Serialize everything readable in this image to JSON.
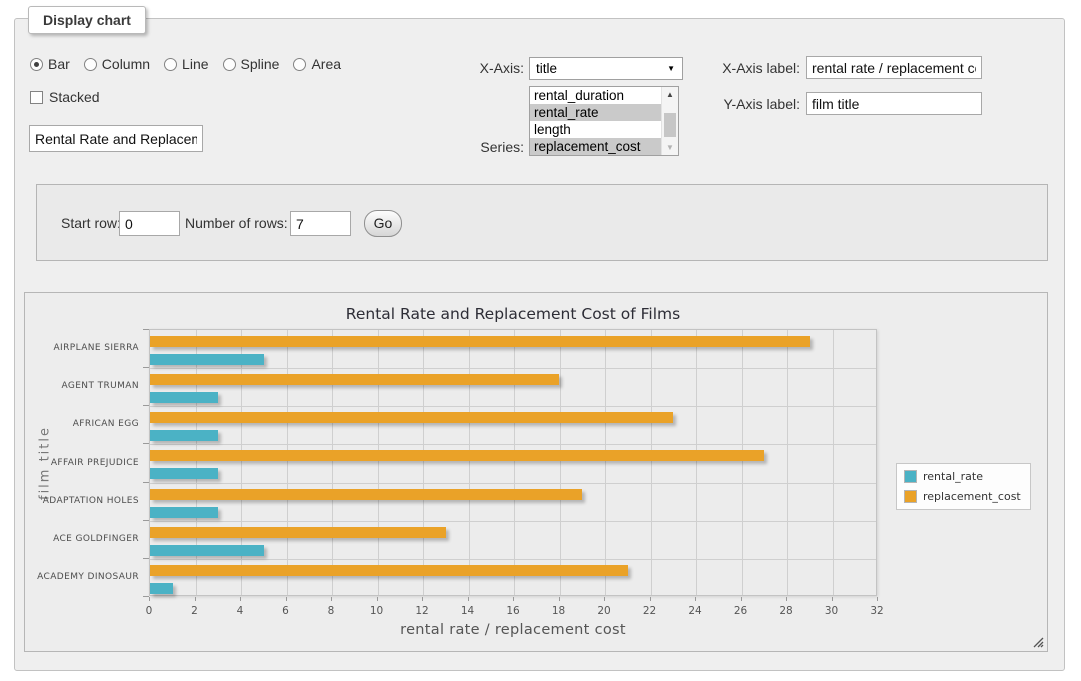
{
  "form": {
    "legend": "Display chart",
    "chart_types": [
      {
        "label": "Bar",
        "checked": true
      },
      {
        "label": "Column",
        "checked": false
      },
      {
        "label": "Line",
        "checked": false
      },
      {
        "label": "Spline",
        "checked": false
      },
      {
        "label": "Area",
        "checked": false
      }
    ],
    "stacked_label": "Stacked",
    "stacked_checked": false,
    "title_value": "Rental Rate and Replacement Cost of Films",
    "x_axis": {
      "label": "X-Axis:",
      "value": "title"
    },
    "series": {
      "label": "Series:",
      "options": [
        {
          "name": "rental_duration",
          "selected": false
        },
        {
          "name": "rental_rate",
          "selected": true
        },
        {
          "name": "length",
          "selected": false
        },
        {
          "name": "replacement_cost",
          "selected": true
        }
      ]
    },
    "x_axis_label": {
      "label": "X-Axis label:",
      "value": "rental rate / replacement cost"
    },
    "y_axis_label": {
      "label": "Y-Axis label:",
      "value": "film title"
    },
    "rows": {
      "start_label": "Start row:",
      "start_value": "0",
      "count_label": "Number of rows:",
      "count_value": "7",
      "go": "Go"
    }
  },
  "chart_data": {
    "type": "bar",
    "orientation": "horizontal",
    "title": "Rental Rate and Replacement Cost of Films",
    "categories": [
      "AIRPLANE SIERRA",
      "AGENT TRUMAN",
      "AFRICAN EGG",
      "AFFAIR PREJUDICE",
      "ADAPTATION HOLES",
      "ACE GOLDFINGER",
      "ACADEMY DINOSAUR"
    ],
    "series": [
      {
        "name": "rental_rate",
        "color": "#4bb2c5",
        "values": [
          4.99,
          2.99,
          2.99,
          2.99,
          2.99,
          4.99,
          0.99
        ]
      },
      {
        "name": "replacement_cost",
        "color": "#eaa228",
        "values": [
          28.99,
          17.99,
          22.99,
          26.99,
          18.99,
          12.99,
          20.99
        ]
      }
    ],
    "xlabel": "rental rate / replacement cost",
    "ylabel": "film title",
    "xlim": [
      0,
      32
    ],
    "xticks": [
      0,
      2,
      4,
      6,
      8,
      10,
      12,
      14,
      16,
      18,
      20,
      22,
      24,
      26,
      28,
      30,
      32
    ],
    "grid": true,
    "legend_position": "right"
  }
}
